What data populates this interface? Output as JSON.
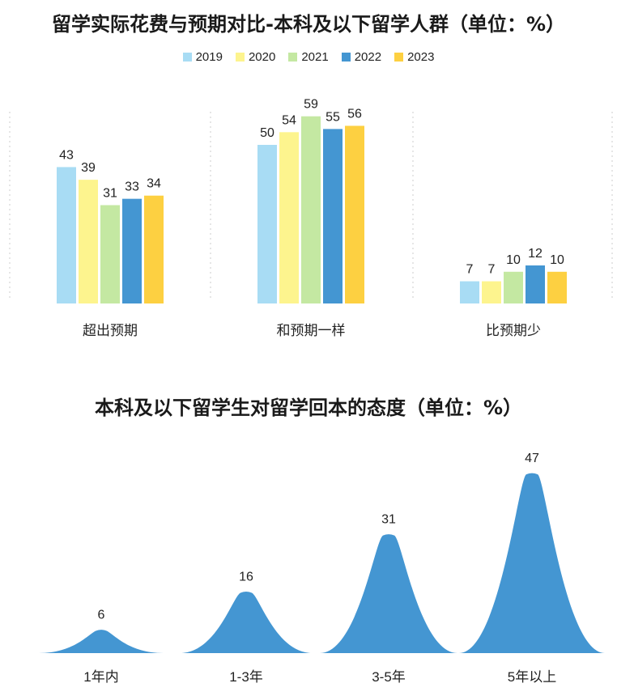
{
  "chart_data": [
    {
      "type": "bar",
      "title": "留学实际花费与预期对比-本科及以下留学人群（单位：%）",
      "categories": [
        "超出预期",
        "和预期一样",
        "比预期少"
      ],
      "series": [
        {
          "name": "2019",
          "color": "#a8dcf4",
          "values": [
            43,
            50,
            7
          ]
        },
        {
          "name": "2020",
          "color": "#fdf48e",
          "values": [
            39,
            54,
            7
          ]
        },
        {
          "name": "2021",
          "color": "#c4e8a2",
          "values": [
            31,
            59,
            10
          ]
        },
        {
          "name": "2022",
          "color": "#4496d2",
          "values": [
            33,
            55,
            12
          ]
        },
        {
          "name": "2023",
          "color": "#fdd041",
          "values": [
            34,
            56,
            10
          ]
        }
      ],
      "legend": "top-center",
      "ylim": [
        0,
        60
      ]
    },
    {
      "type": "area",
      "title": "本科及以下留学生对留学回本的态度（单位：%）",
      "categories": [
        "1年内",
        "1-3年",
        "3-5年",
        "5年以上"
      ],
      "values": [
        6,
        16,
        31,
        47
      ],
      "color": "#4496d2",
      "ylim": [
        0,
        50
      ]
    }
  ]
}
